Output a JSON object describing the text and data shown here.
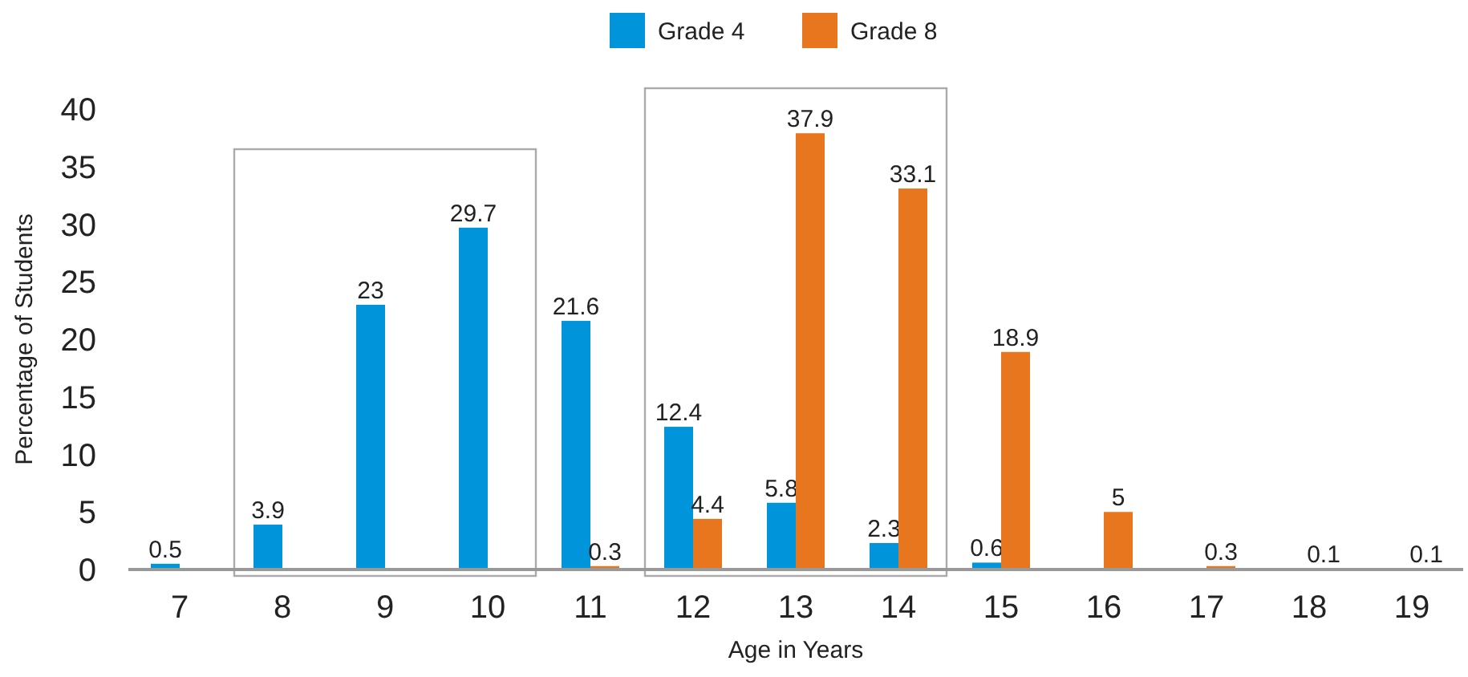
{
  "chart_data": {
    "type": "bar",
    "xlabel": "Age in Years",
    "ylabel": "Percentage of Students",
    "categories": [
      "7",
      "8",
      "9",
      "10",
      "11",
      "12",
      "13",
      "14",
      "15",
      "16",
      "17",
      "18",
      "19"
    ],
    "series": [
      {
        "name": "Grade 4",
        "color": "#0095db",
        "values": [
          0.5,
          3.9,
          23,
          29.7,
          21.6,
          12.4,
          5.8,
          2.3,
          0.6,
          null,
          null,
          null,
          null
        ]
      },
      {
        "name": "Grade 8",
        "color": "#e8761f",
        "values": [
          null,
          null,
          null,
          null,
          0.3,
          4.4,
          37.9,
          33.1,
          18.9,
          5,
          0.3,
          0.1,
          0.1
        ]
      }
    ],
    "ylim": [
      0,
      40
    ],
    "yticks": [
      0,
      5,
      10,
      15,
      20,
      25,
      30,
      35,
      40
    ],
    "data_labels": true,
    "legend": "top",
    "grid": false
  }
}
